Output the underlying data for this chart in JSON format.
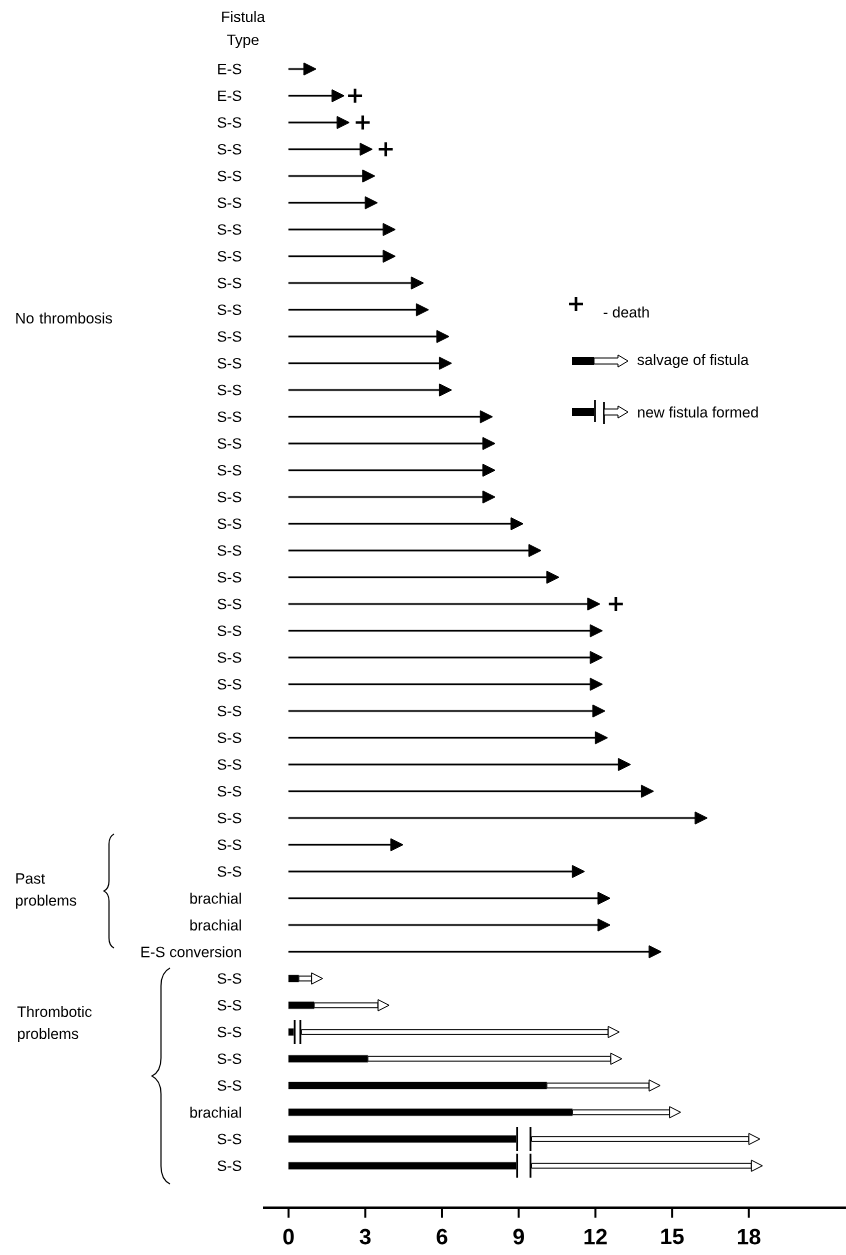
{
  "chart_data": {
    "type": "bar",
    "orientation": "horizontal",
    "ylabel": "Fistula Type",
    "categories": [
      "E-S",
      "E-S",
      "S-S",
      "S-S",
      "S-S",
      "S-S",
      "S-S",
      "S-S",
      "S-S",
      "S-S",
      "S-S",
      "S-S",
      "S-S",
      "S-S",
      "S-S",
      "S-S",
      "S-S",
      "S-S",
      "S-S",
      "S-S",
      "S-S",
      "S-S",
      "S-S",
      "S-S",
      "S-S",
      "S-S",
      "S-S",
      "S-S",
      "S-S",
      "S-S",
      "S-S",
      "brachial",
      "brachial",
      "E-S conversion",
      "S-S",
      "S-S",
      "S-S",
      "S-S",
      "S-S",
      "brachial",
      "S-S",
      "S-S"
    ],
    "series": [
      {
        "name": "- death",
        "type": "scatter",
        "marker": "cross",
        "color": "#000000",
        "values": [
          null,
          2.6,
          2.9,
          3.8,
          null,
          null,
          null,
          null,
          null,
          null,
          null,
          null,
          null,
          null,
          null,
          null,
          null,
          null,
          null,
          null,
          12.8,
          null,
          null,
          null,
          null,
          null,
          null,
          null,
          null,
          null,
          null,
          null,
          null,
          null,
          null,
          null,
          null,
          null,
          null,
          null,
          null,
          null
        ]
      },
      {
        "color": "#000000",
        "values": [
          0.6,
          1.7,
          1.9,
          2.8,
          2.9,
          3.0,
          3.7,
          3.7,
          4.8,
          5.0,
          5.8,
          5.9,
          5.9,
          7.5,
          7.6,
          7.6,
          7.6,
          8.7,
          9.4,
          10.1,
          11.7,
          11.8,
          11.8,
          11.8,
          11.9,
          12.0,
          12.9,
          13.8,
          15.9,
          4.0,
          11.1,
          12.1,
          12.1,
          14.1,
          0.4,
          1.0,
          0.2,
          3.1,
          10.1,
          11.1,
          8.9,
          8.9
        ]
      },
      {
        "name": "salvage of fistula",
        "color": "#ffffff",
        "base": [
          null,
          null,
          null,
          null,
          null,
          null,
          null,
          null,
          null,
          null,
          null,
          null,
          null,
          null,
          null,
          null,
          null,
          null,
          null,
          null,
          null,
          null,
          null,
          null,
          null,
          null,
          null,
          null,
          null,
          null,
          null,
          null,
          null,
          null,
          0.4,
          1.0,
          null,
          3.1,
          10.1,
          11.1,
          null,
          null
        ],
        "values": [
          null,
          null,
          null,
          null,
          null,
          null,
          null,
          null,
          null,
          null,
          null,
          null,
          null,
          null,
          null,
          null,
          null,
          null,
          null,
          null,
          null,
          null,
          null,
          null,
          null,
          null,
          null,
          null,
          null,
          null,
          null,
          null,
          null,
          null,
          0.5,
          2.5,
          null,
          9.5,
          4.0,
          3.8,
          null,
          null
        ]
      },
      {
        "name": "new fistula formed",
        "color": "#ffffff",
        "base": [
          null,
          null,
          null,
          null,
          null,
          null,
          null,
          null,
          null,
          null,
          null,
          null,
          null,
          null,
          null,
          null,
          null,
          null,
          null,
          null,
          null,
          null,
          null,
          null,
          null,
          null,
          null,
          null,
          null,
          null,
          null,
          null,
          null,
          null,
          null,
          null,
          0.5,
          null,
          null,
          null,
          9.5,
          9.5
        ],
        "values": [
          null,
          null,
          null,
          null,
          null,
          null,
          null,
          null,
          null,
          null,
          null,
          null,
          null,
          null,
          null,
          null,
          null,
          null,
          null,
          null,
          null,
          null,
          null,
          null,
          null,
          null,
          null,
          null,
          null,
          null,
          null,
          null,
          null,
          null,
          null,
          null,
          12.0,
          null,
          null,
          null,
          8.5,
          8.6
        ]
      }
    ],
    "xlim": [
      -1,
      21.8
    ],
    "xticks": [
      0,
      3,
      6,
      9,
      12,
      15,
      18
    ],
    "legend": "right",
    "annotations": [
      "No thrombosis",
      "Past problems",
      "Thrombotic problems"
    ]
  }
}
